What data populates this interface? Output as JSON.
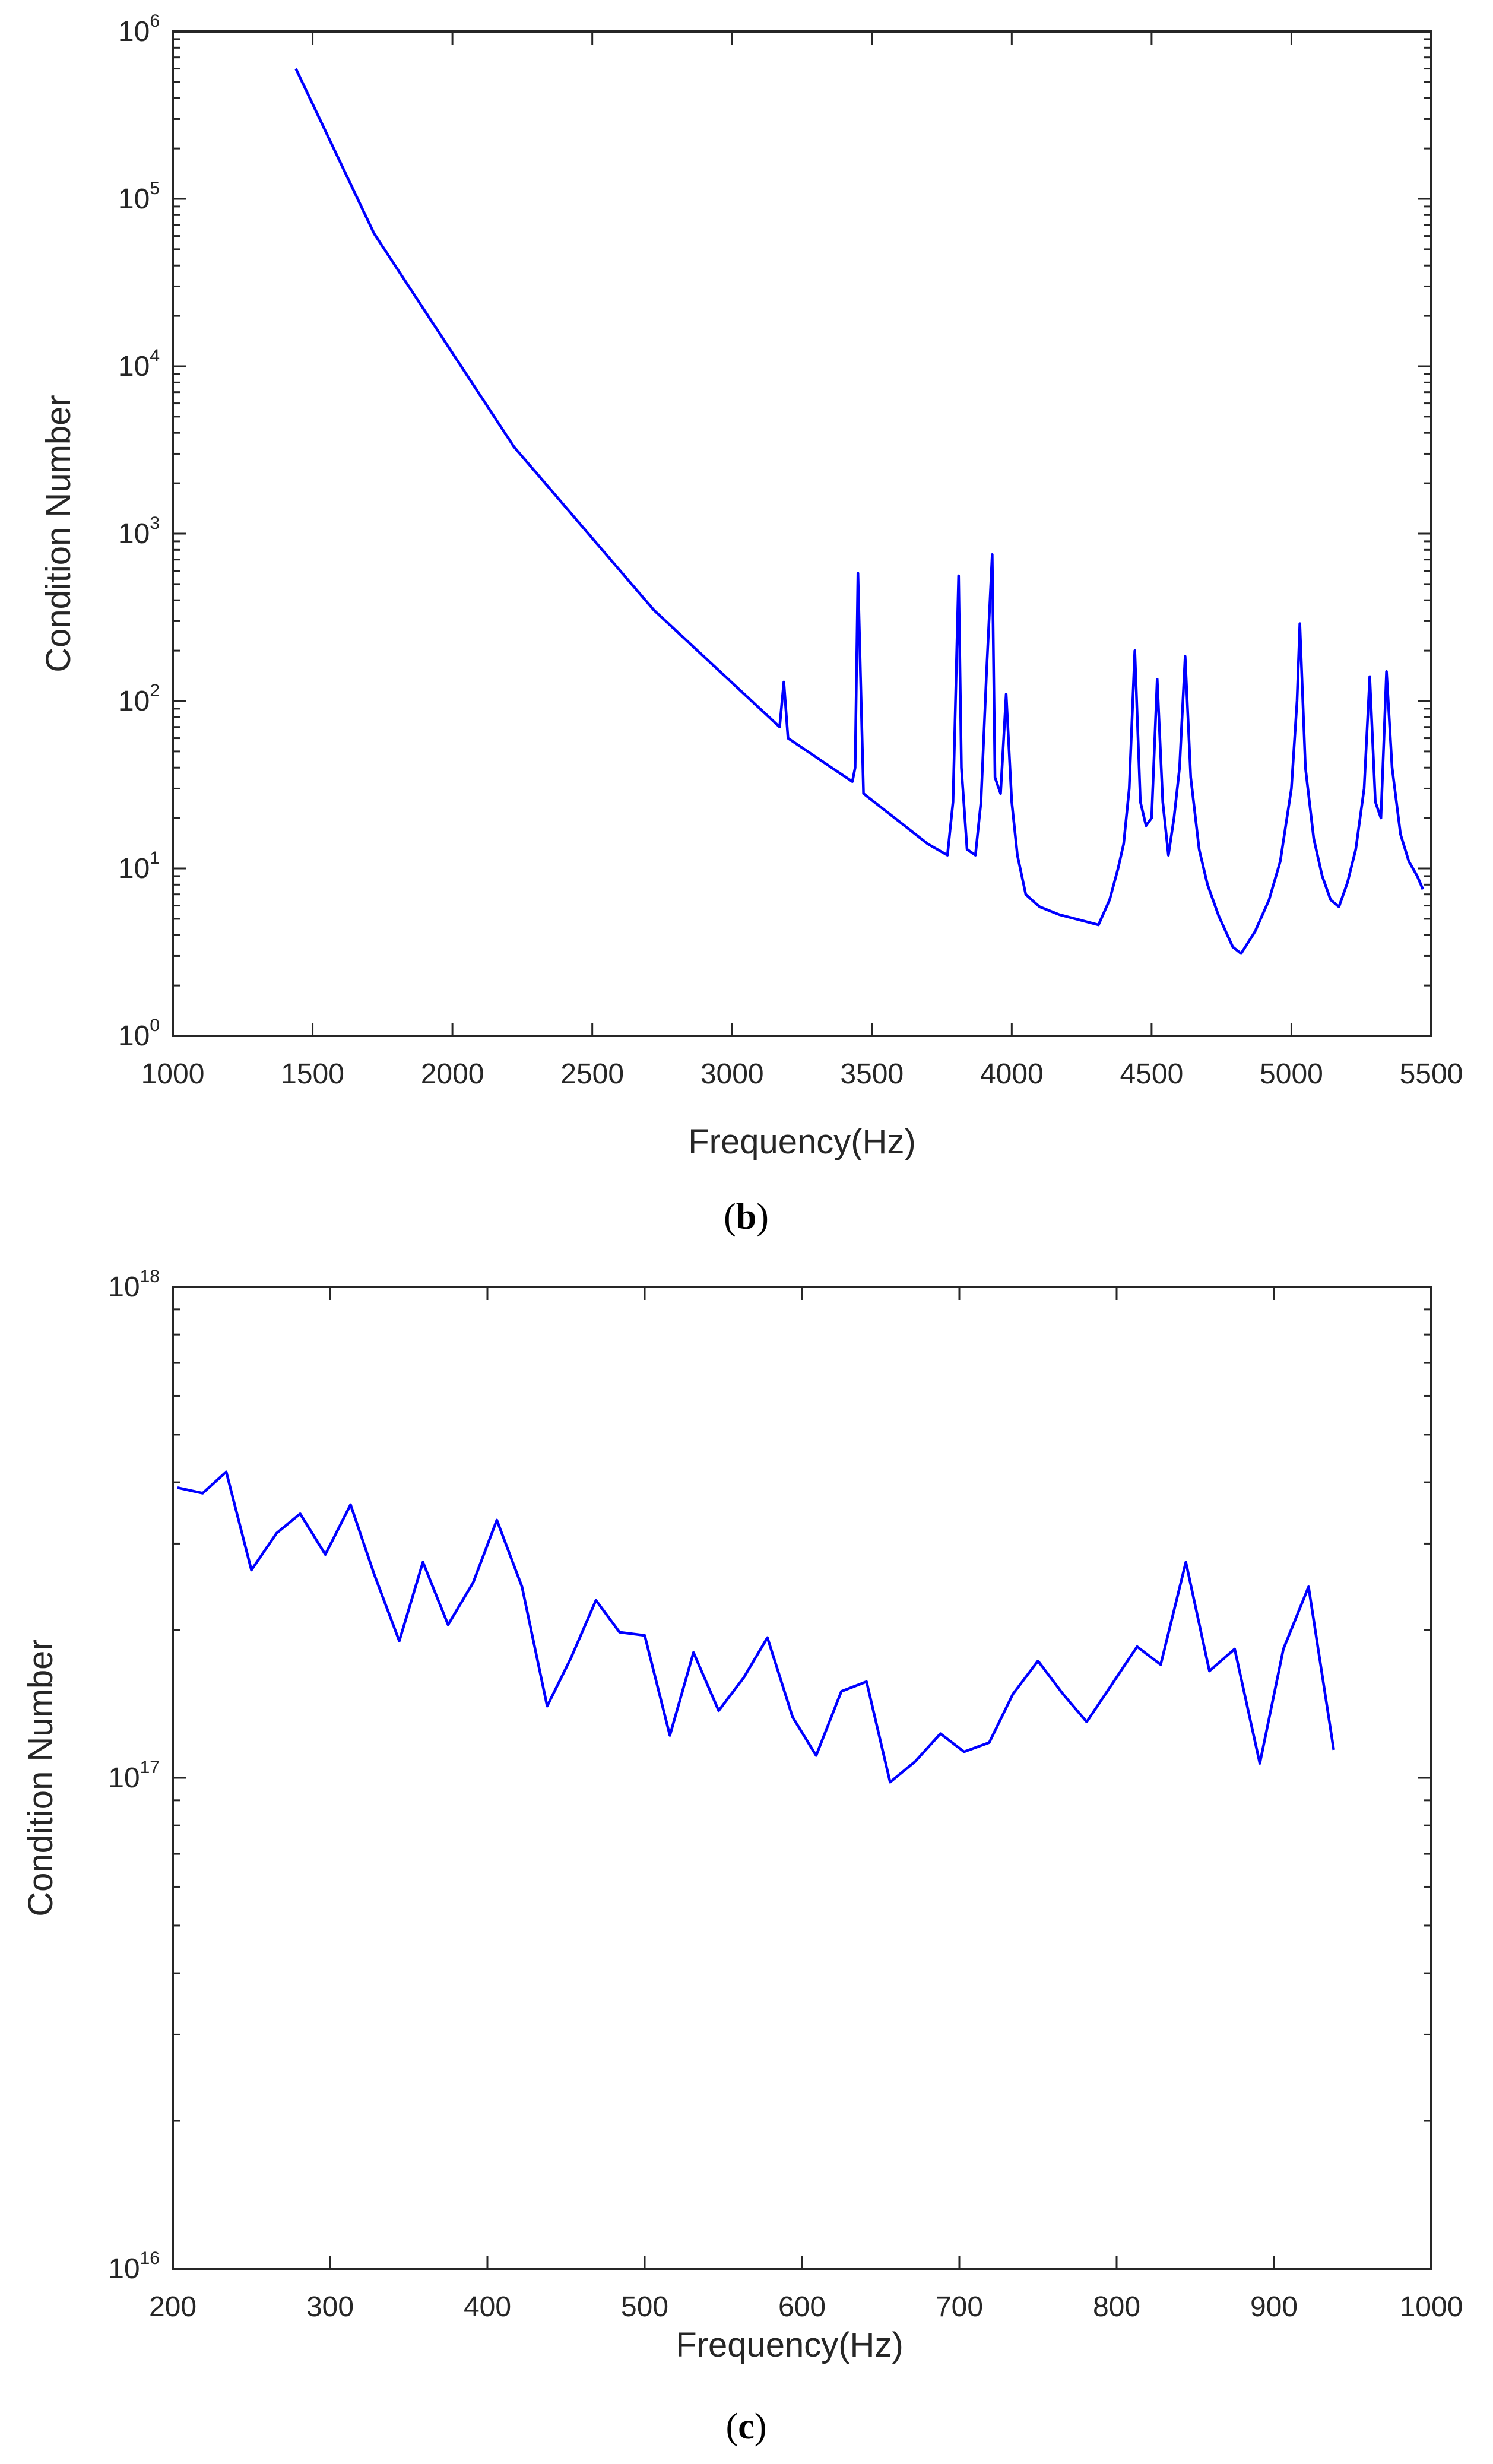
{
  "figure": {
    "colors": {
      "series": "#0000ff",
      "axis": "#262626",
      "background": "#ffffff"
    }
  },
  "chart_data": [
    {
      "type": "line",
      "panel": "b",
      "caption": {
        "open": "(",
        "letter": "b",
        "close": ")"
      },
      "xlabel": "Frequency(Hz)",
      "ylabel": "Condition Number",
      "xscale": "linear",
      "yscale": "log",
      "xlim": [
        1000,
        5500
      ],
      "ylim": [
        1,
        1000000
      ],
      "xticks": [
        1000,
        1500,
        2000,
        2500,
        3000,
        3500,
        4000,
        4500,
        5000,
        5500
      ],
      "yticks": [
        {
          "value": 1,
          "base": "10",
          "exp": "0"
        },
        {
          "value": 10,
          "base": "10",
          "exp": "1"
        },
        {
          "value": 100,
          "base": "10",
          "exp": "2"
        },
        {
          "value": 1000,
          "base": "10",
          "exp": "3"
        },
        {
          "value": 10000,
          "base": "10",
          "exp": "4"
        },
        {
          "value": 100000,
          "base": "10",
          "exp": "5"
        },
        {
          "value": 1000000,
          "base": "10",
          "exp": "6"
        }
      ],
      "grid": false,
      "series": [
        {
          "name": "Condition Number",
          "color": "#0000ff",
          "x": [
            1440,
            1720,
            2220,
            2720,
            3170,
            3185,
            3200,
            3430,
            3440,
            3450,
            3470,
            3700,
            3770,
            3790,
            3810,
            3820,
            3840,
            3870,
            3890,
            3910,
            3930,
            3940,
            3960,
            3980,
            4000,
            4020,
            4050,
            4080,
            4100,
            4170,
            4310,
            4350,
            4380,
            4400,
            4420,
            4440,
            4460,
            4480,
            4500,
            4520,
            4540,
            4560,
            4580,
            4600,
            4620,
            4640,
            4670,
            4700,
            4740,
            4790,
            4820,
            4870,
            4920,
            4960,
            5000,
            5020,
            5030,
            5050,
            5080,
            5110,
            5140,
            5170,
            5200,
            5230,
            5260,
            5280,
            5300,
            5320,
            5340,
            5360,
            5390,
            5420,
            5450,
            5470
          ],
          "y": [
            600000,
            62000,
            3300,
            350,
            70,
            130,
            60,
            33,
            40,
            580,
            28,
            14,
            12,
            25,
            560,
            40,
            13,
            12,
            25,
            150,
            750,
            35,
            28,
            110,
            25,
            12,
            7,
            6.3,
            5.9,
            5.3,
            4.6,
            6.5,
            10,
            14,
            30,
            200,
            25,
            18,
            20,
            135,
            25,
            12,
            20,
            40,
            185,
            35,
            13,
            8,
            5.2,
            3.4,
            3.1,
            4.2,
            6.5,
            11,
            30,
            100,
            290,
            40,
            15,
            9,
            6.5,
            5.9,
            8.2,
            13,
            30,
            140,
            25,
            20,
            150,
            40,
            16,
            11,
            9,
            7.5
          ]
        }
      ]
    },
    {
      "type": "line",
      "panel": "c",
      "caption": {
        "open": "(",
        "letter": "c",
        "close": ")"
      },
      "xlabel": "Frequency(Hz)",
      "ylabel": "Condition Number",
      "xscale": "linear",
      "yscale": "log",
      "xlim": [
        200,
        1000
      ],
      "ylim": [
        1e+16,
        1e+18
      ],
      "xticks": [
        200,
        300,
        400,
        500,
        600,
        700,
        800,
        900,
        1000
      ],
      "yticks": [
        {
          "value": 1e+16,
          "base": "10",
          "exp": "16"
        },
        {
          "value": 1e+17,
          "base": "10",
          "exp": "17"
        },
        {
          "value": 1e+18,
          "base": "10",
          "exp": "18"
        }
      ],
      "grid": false,
      "series": [
        {
          "name": "Condition Number",
          "color": "#0000ff",
          "x": [
            203,
            219,
            234,
            250,
            266,
            281,
            297,
            313,
            328,
            344,
            359,
            375,
            391,
            406,
            422,
            438,
            453,
            469,
            484,
            500,
            516,
            531,
            547,
            563,
            578,
            594,
            609,
            625,
            641,
            656,
            672,
            688,
            703,
            719,
            734,
            750,
            766,
            781,
            797,
            813,
            828,
            844,
            859,
            875,
            891,
            906,
            922,
            938
          ],
          "y": [
            3.9e+17,
            3.8e+17,
            4.2e+17,
            2.65e+17,
            3.15e+17,
            3.45e+17,
            2.85e+17,
            3.6e+17,
            2.6e+17,
            1.9e+17,
            2.75e+17,
            2.05e+17,
            2.5e+17,
            3.35e+17,
            2.45e+17,
            1.4e+17,
            1.75e+17,
            2.3e+17,
            1.98e+17,
            1.95e+17,
            1.22e+17,
            1.8e+17,
            1.37e+17,
            1.6e+17,
            1.93e+17,
            1.33e+17,
            1.11e+17,
            1.5e+17,
            1.57e+17,
            9.8e+16,
            1.08e+17,
            1.23e+17,
            1.13e+17,
            1.18e+17,
            1.48e+17,
            1.73e+17,
            1.48e+17,
            1.3e+17,
            1.55e+17,
            1.85e+17,
            1.7e+17,
            2.75e+17,
            1.65e+17,
            1.83e+17,
            1.07e+17,
            1.83e+17,
            2.45e+17,
            1.14e+17
          ]
        }
      ]
    }
  ]
}
